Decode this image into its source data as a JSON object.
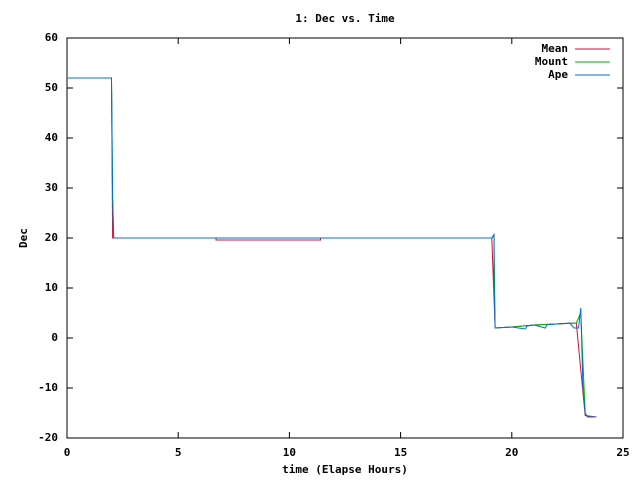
{
  "chart_data": {
    "type": "line",
    "title": "1: Dec vs. Time",
    "x_label": "time (Elapse Hours)",
    "y_label": "Dec",
    "xlim": [
      0,
      25
    ],
    "xticks": [
      0,
      5,
      10,
      15,
      20,
      25
    ],
    "ylim": [
      -20,
      60
    ],
    "yticks": [
      -20,
      -10,
      0,
      10,
      20,
      30,
      40,
      50,
      60
    ],
    "grid": false,
    "legend": "top-right",
    "series": [
      {
        "name": "Mean",
        "color": "#d0103a",
        "x": [
          0,
          2.0,
          2.05,
          6.7,
          6.7,
          11.4,
          11.4,
          19.1,
          19.25,
          20,
          21,
          22,
          22.9,
          23.3,
          23.8
        ],
        "values": [
          52,
          52,
          20,
          20,
          19.6,
          19.6,
          20,
          20,
          2,
          2.2,
          2.6,
          2.8,
          3,
          -15.5,
          -15.8
        ]
      },
      {
        "name": "Mount",
        "color": "#00b000",
        "x": [
          0,
          2.0,
          2.05,
          2.1,
          19.1,
          19.2,
          19.25,
          20,
          21,
          22,
          22.9,
          23.1,
          23.3,
          23.4,
          23.8
        ],
        "values": [
          52,
          52,
          28,
          20,
          20,
          20.5,
          2,
          2.2,
          2.6,
          2.8,
          3,
          5,
          -15,
          -15.8,
          -15.8
        ]
      },
      {
        "name": "Ape",
        "color": "#0070d0",
        "x": [
          0,
          2.0,
          2.02,
          2.05,
          2.1,
          19.1,
          19.2,
          19.2,
          19.25,
          20,
          20.6,
          20.7,
          21,
          21.5,
          21.6,
          22,
          22.6,
          22.8,
          23.0,
          23.1,
          23.2,
          23.3,
          23.4,
          23.8
        ],
        "values": [
          52,
          52,
          44,
          28,
          20,
          20,
          20.7,
          11,
          2,
          2.2,
          1.8,
          2.4,
          2.6,
          2.0,
          2.7,
          2.8,
          3,
          2,
          2,
          6,
          -10,
          -15,
          -15.8,
          -15.8
        ]
      }
    ]
  }
}
